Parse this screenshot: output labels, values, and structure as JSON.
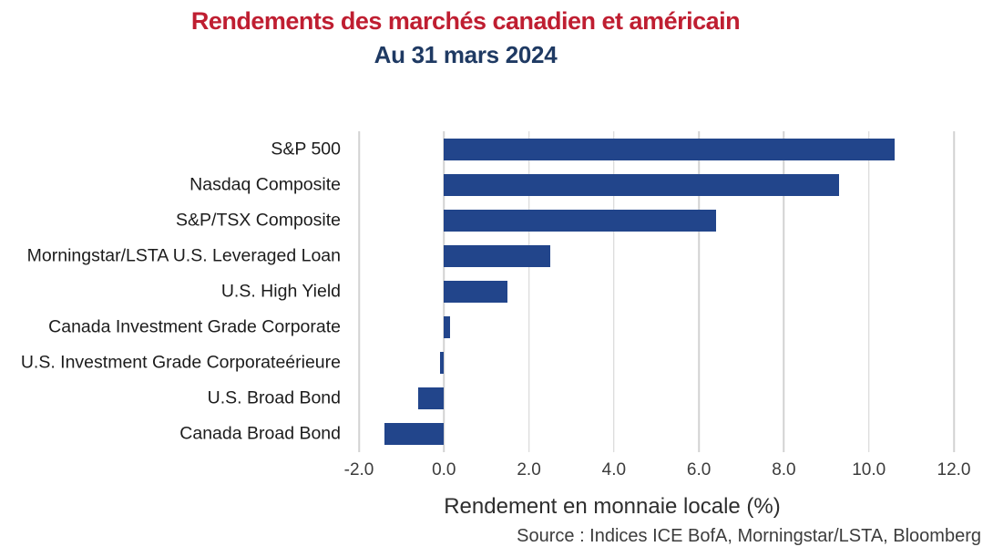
{
  "header": {
    "title": "Rendements des marchés canadien et américain",
    "subtitle": "Au 31 mars 2024"
  },
  "chart_data": {
    "type": "bar",
    "orientation": "horizontal",
    "title": "Rendements des marchés canadien et américain",
    "subtitle": "Au 31 mars 2024",
    "categories": [
      "S&P 500",
      "Nasdaq Composite",
      "S&P/TSX Composite",
      "Morningstar/LSTA U.S. Leveraged Loan",
      "U.S. High Yield",
      "Canada Investment Grade Corporate",
      "U.S. Investment Grade Corporateérieure",
      "U.S. Broad Bond",
      "Canada Broad Bond"
    ],
    "values": [
      10.6,
      9.3,
      6.4,
      2.5,
      1.5,
      0.15,
      -0.1,
      -0.6,
      -1.4
    ],
    "xlabel": "Rendement en monnaie locale (%)",
    "ylabel": "",
    "xlim": [
      -2.0,
      12.0
    ],
    "xticks": [
      -2.0,
      0.0,
      2.0,
      4.0,
      6.0,
      8.0,
      10.0,
      12.0
    ],
    "xtick_labels": [
      "-2.0",
      "0.0",
      "2.0",
      "4.0",
      "6.0",
      "8.0",
      "10.0",
      "12.0"
    ],
    "grid": true,
    "legend": false,
    "bar_color": "#22458B"
  },
  "footer": {
    "source": "Source : Indices ICE BofA, Morningstar/LSTA, Bloomberg"
  },
  "colors": {
    "title": "#BF1E31",
    "subtitle": "#1F3A63",
    "bar": "#22458B",
    "gridline": "#D2D2D2",
    "tick_text": "#3C3C3C",
    "category_text": "#1C1C1C",
    "axis_label_text": "#2E2E2E",
    "source_text": "#3C3C3C"
  }
}
